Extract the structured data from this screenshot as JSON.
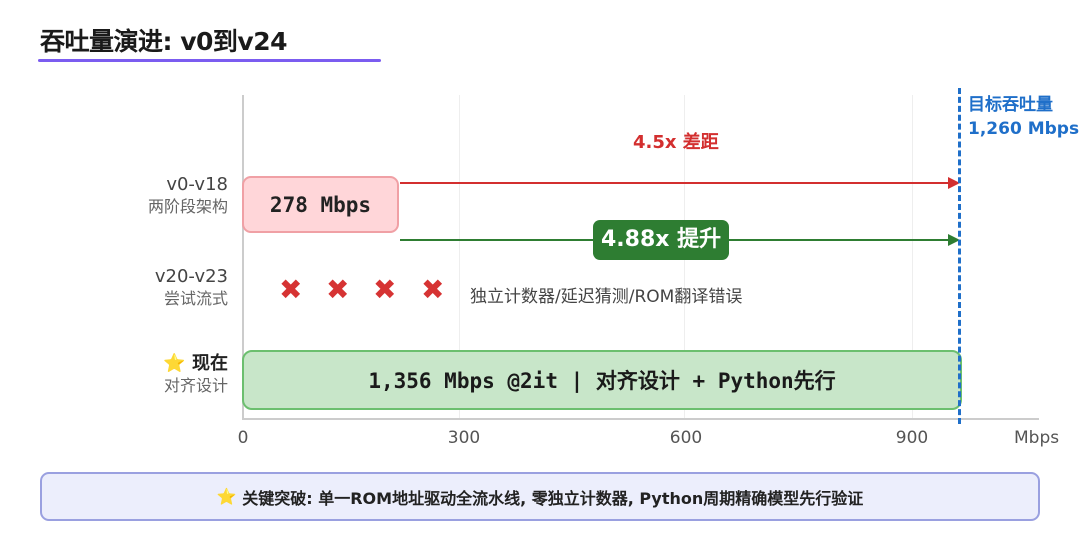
{
  "title": "吞吐量演进: v0到v24",
  "rows": [
    {
      "version": "v0-v18",
      "desc": "两阶段架构",
      "bar_label": "278 Mbps"
    },
    {
      "version": "v20-v23",
      "desc": "尝试流式",
      "note": "独立计数器/延迟猜测/ROM翻译错误",
      "failed_attempts": 4
    },
    {
      "version": "现在",
      "desc": "对齐设计",
      "bar_label": "1,356 Mbps @2it | 对齐设计 + Python先行"
    }
  ],
  "axis": {
    "ticks": [
      "0",
      "300",
      "600",
      "900"
    ],
    "unit": "Mbps"
  },
  "target": {
    "label": "目标吞吐量",
    "value": "1,260 Mbps",
    "color": "#1f6fc9"
  },
  "gap_arrow": {
    "label": "4.5x 差距",
    "color": "#d32f2f"
  },
  "gain_arrow": {
    "label": "4.88x 提升",
    "color": "#2e7d32"
  },
  "footer": "关键突破: 单一ROM地址驱动全流水线, 零独立计数器, Python周期精确模型先行验证",
  "icons": {
    "star": "⭐",
    "cross": "✖"
  }
}
